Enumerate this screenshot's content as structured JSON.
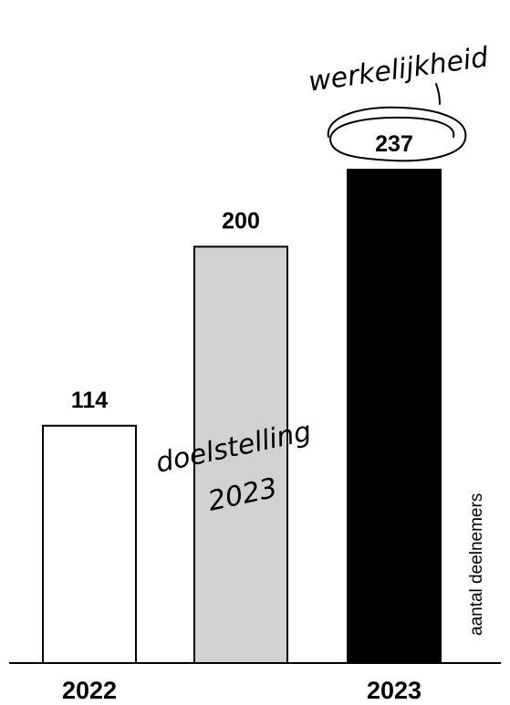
{
  "chart_data": {
    "type": "bar",
    "categories": [
      "2022",
      "doelstelling 2023",
      "2023"
    ],
    "values": [
      114,
      200,
      237
    ],
    "value_labels": [
      "114",
      "200",
      "237"
    ],
    "bar_colors": [
      "#ffffff",
      "#d2d2d2",
      "#000000"
    ],
    "xtick_labels": [
      "2022",
      "",
      "2023"
    ],
    "ylabel": "aantal deelnemers",
    "ylim": [
      0,
      237
    ],
    "grid": false,
    "annotations": {
      "target_line1": "doelstelling",
      "target_line2": "2023",
      "actual": "werkelijkheid"
    }
  }
}
